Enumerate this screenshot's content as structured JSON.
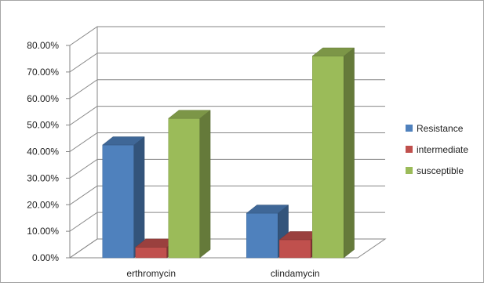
{
  "chart_data": {
    "type": "bar",
    "title": "",
    "xlabel": "",
    "ylabel": "",
    "categories": [
      "erthromycin",
      "clindamycin"
    ],
    "series": [
      {
        "name": "Resistance",
        "values": [
          42.5,
          16.8
        ],
        "color": "#4f81bd"
      },
      {
        "name": "intermediate",
        "values": [
          4.0,
          6.8
        ],
        "color": "#c0504d"
      },
      {
        "name": "susceptible",
        "values": [
          52.5,
          76.0
        ],
        "color": "#9bbb59"
      }
    ],
    "ylim": [
      0,
      80
    ],
    "yticks": [
      "0.00%",
      "10.00%",
      "20.00%",
      "30.00%",
      "40.00%",
      "50.00%",
      "60.00%",
      "70.00%",
      "80.00%"
    ],
    "grid": true,
    "legend_position": "right",
    "style": "3d-clustered-column"
  }
}
